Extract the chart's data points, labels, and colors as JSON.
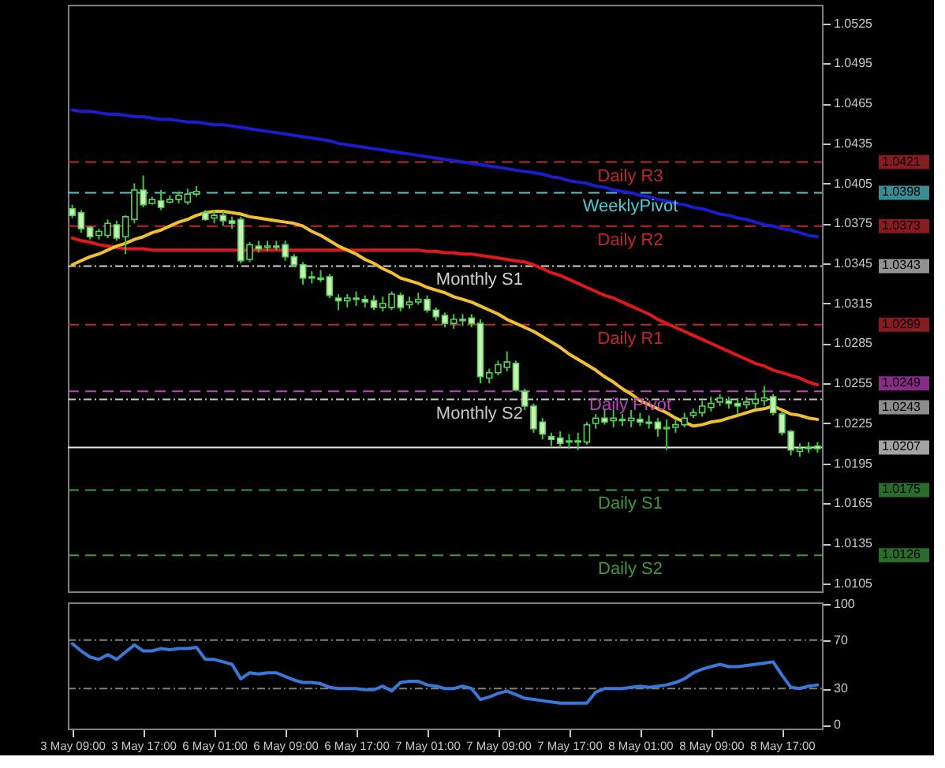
{
  "chart_data": [
    {
      "type": "candlestick",
      "categories": [
        null,
        null,
        null,
        null,
        null,
        null,
        null,
        null,
        null,
        null,
        null,
        null,
        null,
        null,
        null,
        null,
        null,
        null,
        null,
        null,
        null,
        null,
        null,
        null,
        null,
        null,
        null,
        null,
        null,
        null,
        null,
        null,
        null,
        null,
        null,
        null,
        null,
        null,
        null,
        null,
        null,
        null,
        null,
        null,
        null,
        null,
        null,
        null,
        null,
        null,
        null,
        null,
        null,
        null,
        null,
        null,
        null,
        null,
        null,
        null,
        null,
        null,
        null,
        null,
        null,
        null,
        null,
        null,
        null,
        null,
        null,
        null,
        null,
        null,
        null,
        null,
        null,
        null,
        null,
        null,
        null,
        null,
        null,
        null,
        null
      ],
      "ohlc": [
        [
          1.0386,
          1.0389,
          1.0379,
          1.0381
        ],
        [
          1.0383,
          1.0385,
          1.0368,
          1.0371
        ],
        [
          1.0372,
          1.0373,
          1.0363,
          1.0365
        ],
        [
          1.0366,
          1.0371,
          1.0363,
          1.0369
        ],
        [
          1.0366,
          1.0378,
          1.0364,
          1.0375
        ],
        [
          1.0374,
          1.0377,
          1.0362,
          1.0364
        ],
        [
          1.0365,
          1.0381,
          1.0352,
          1.038
        ],
        [
          1.0378,
          1.0405,
          1.0375,
          1.04
        ],
        [
          1.04,
          1.0411,
          1.0387,
          1.0389
        ],
        [
          1.039,
          1.0395,
          1.0389,
          1.0393
        ],
        [
          1.0392,
          1.04,
          1.0385,
          1.0387
        ],
        [
          1.0391,
          1.0396,
          1.039,
          1.0393
        ],
        [
          1.0393,
          1.0399,
          1.039,
          1.0396
        ],
        [
          1.0391,
          1.0401,
          1.0389,
          1.0397
        ],
        [
          1.0397,
          1.0403,
          1.0395,
          1.0399
        ],
        [
          1.0383,
          1.0385,
          1.0377,
          1.0378
        ],
        [
          1.0379,
          1.0385,
          1.0375,
          1.0381
        ],
        [
          1.0381,
          1.0384,
          1.0373,
          1.0377
        ],
        [
          1.0377,
          1.038,
          1.0371,
          1.0375
        ],
        [
          1.0378,
          1.038,
          1.0345,
          1.0347
        ],
        [
          1.0348,
          1.0361,
          1.0346,
          1.0359
        ],
        [
          1.0358,
          1.0362,
          1.0353,
          1.0356
        ],
        [
          1.0357,
          1.0362,
          1.0354,
          1.0358
        ],
        [
          1.0358,
          1.0362,
          1.0355,
          1.0357
        ],
        [
          1.0359,
          1.0362,
          1.0347,
          1.035
        ],
        [
          1.035,
          1.0352,
          1.0342,
          1.0344
        ],
        [
          1.0344,
          1.0346,
          1.0329,
          1.0334
        ],
        [
          1.0335,
          1.0339,
          1.033,
          1.0334
        ],
        [
          1.0334,
          1.034,
          1.0331,
          1.0333
        ],
        [
          1.0335,
          1.0337,
          1.0319,
          1.0321
        ],
        [
          1.0319,
          1.0322,
          1.031,
          1.0317
        ],
        [
          1.0317,
          1.0322,
          1.0312,
          1.0319
        ],
        [
          1.0319,
          1.0324,
          1.0313,
          1.0318
        ],
        [
          1.0318,
          1.0321,
          1.0312,
          1.0316
        ],
        [
          1.0317,
          1.0321,
          1.031,
          1.0312
        ],
        [
          1.0312,
          1.032,
          1.0309,
          1.0315
        ],
        [
          1.0312,
          1.0324,
          1.031,
          1.0322
        ],
        [
          1.0321,
          1.0323,
          1.0309,
          1.0312
        ],
        [
          1.0314,
          1.032,
          1.0311,
          1.0316
        ],
        [
          1.0316,
          1.0323,
          1.0314,
          1.0318
        ],
        [
          1.0318,
          1.0321,
          1.0308,
          1.031
        ],
        [
          1.031,
          1.0312,
          1.0302,
          1.0305
        ],
        [
          1.0306,
          1.0308,
          1.0297,
          1.03
        ],
        [
          1.03,
          1.0307,
          1.0296,
          1.0303
        ],
        [
          1.0303,
          1.0307,
          1.0298,
          1.0302
        ],
        [
          1.0304,
          1.0307,
          1.0297,
          1.03
        ],
        [
          1.03,
          1.0303,
          1.0255,
          1.026
        ],
        [
          1.0259,
          1.0266,
          1.0255,
          1.0263
        ],
        [
          1.0263,
          1.0272,
          1.0261,
          1.0269
        ],
        [
          1.0267,
          1.0279,
          1.0264,
          1.0271
        ],
        [
          1.027,
          1.0272,
          1.0249,
          1.025
        ],
        [
          1.0249,
          1.0251,
          1.0235,
          1.0238
        ],
        [
          1.0238,
          1.024,
          1.0218,
          1.0221
        ],
        [
          1.0226,
          1.0229,
          1.0213,
          1.0217
        ],
        [
          1.0215,
          1.0218,
          1.0208,
          1.0213
        ],
        [
          1.0214,
          1.0219,
          1.0207,
          1.021
        ],
        [
          1.0211,
          1.0217,
          1.0206,
          1.0212
        ],
        [
          1.0212,
          1.0218,
          1.0205,
          1.0211
        ],
        [
          1.0211,
          1.0226,
          1.0209,
          1.0224
        ],
        [
          1.0225,
          1.0232,
          1.0221,
          1.0229
        ],
        [
          1.0229,
          1.0236,
          1.0224,
          1.0226
        ],
        [
          1.0227,
          1.0235,
          1.0222,
          1.0229
        ],
        [
          1.0228,
          1.0232,
          1.0223,
          1.0227
        ],
        [
          1.0227,
          1.0235,
          1.0222,
          1.0229
        ],
        [
          1.0228,
          1.0233,
          1.0223,
          1.0226
        ],
        [
          1.0226,
          1.0231,
          1.0221,
          1.0225
        ],
        [
          1.0226,
          1.0229,
          1.0215,
          1.0221
        ],
        [
          1.0221,
          1.0228,
          1.0205,
          1.0222
        ],
        [
          1.0222,
          1.0228,
          1.0218,
          1.0224
        ],
        [
          1.0224,
          1.0233,
          1.0222,
          1.0229
        ],
        [
          1.0231,
          1.0236,
          1.0229,
          1.0233
        ],
        [
          1.0233,
          1.0242,
          1.023,
          1.0238
        ],
        [
          1.0237,
          1.0245,
          1.0234,
          1.024
        ],
        [
          1.0241,
          1.0247,
          1.0238,
          1.0244
        ],
        [
          1.0242,
          1.0245,
          1.0236,
          1.024
        ],
        [
          1.024,
          1.0244,
          1.0232,
          1.0238
        ],
        [
          1.0239,
          1.0245,
          1.0236,
          1.0241
        ],
        [
          1.024,
          1.0248,
          1.0236,
          1.0243
        ],
        [
          1.0242,
          1.0253,
          1.0238,
          1.0244
        ],
        [
          1.0245,
          1.0247,
          1.0231,
          1.0233
        ],
        [
          1.0232,
          1.0234,
          1.0216,
          1.0218
        ],
        [
          1.0219,
          1.022,
          1.0201,
          1.0205
        ],
        [
          1.0204,
          1.021,
          1.02,
          1.0206
        ],
        [
          1.0206,
          1.0211,
          1.0203,
          1.0207
        ],
        [
          1.0208,
          1.0211,
          1.0203,
          1.0206
        ]
      ],
      "series": [
        {
          "type": "line",
          "color": "#1c1ccf",
          "values": [
            1.046,
            1.0459,
            1.0459,
            1.0458,
            1.0457,
            1.0457,
            1.0456,
            1.0455,
            1.0455,
            1.0454,
            1.0453,
            1.0453,
            1.0452,
            1.0451,
            1.0451,
            1.045,
            1.0449,
            1.0449,
            1.0448,
            1.0447,
            1.0446,
            1.0445,
            1.0444,
            1.0443,
            1.0442,
            1.0441,
            1.044,
            1.0439,
            1.0438,
            1.0437,
            1.0435,
            1.0434,
            1.0433,
            1.0432,
            1.0431,
            1.043,
            1.0429,
            1.0428,
            1.0427,
            1.0426,
            1.0425,
            1.0424,
            1.0423,
            1.0422,
            1.0421,
            1.042,
            1.0419,
            1.0418,
            1.0417,
            1.0416,
            1.0415,
            1.0414,
            1.0413,
            1.0412,
            1.041,
            1.0409,
            1.0407,
            1.0406,
            1.0405,
            1.0403,
            1.0402,
            1.04,
            1.0399,
            1.0398,
            1.0396,
            1.0395,
            1.0393,
            1.0392,
            1.039,
            1.0389,
            1.0387,
            1.0386,
            1.0384,
            1.0382,
            1.0381,
            1.0379,
            1.0378,
            1.0376,
            1.0374,
            1.0373,
            1.0371,
            1.037,
            1.0368,
            1.0366,
            1.0365
          ]
        },
        {
          "type": "line",
          "color": "#e01818",
          "values": [
            1.0364,
            1.0362,
            1.0361,
            1.0359,
            1.0358,
            1.0357,
            1.0356,
            1.0356,
            1.0356,
            1.0355,
            1.0355,
            1.0355,
            1.0355,
            1.0355,
            1.0355,
            1.0355,
            1.0355,
            1.0355,
            1.0355,
            1.0355,
            1.0355,
            1.0355,
            1.0355,
            1.0355,
            1.0355,
            1.0355,
            1.0355,
            1.0355,
            1.0355,
            1.0355,
            1.0355,
            1.0355,
            1.0355,
            1.0355,
            1.0355,
            1.0355,
            1.0355,
            1.0355,
            1.0355,
            1.0355,
            1.0354,
            1.0354,
            1.0353,
            1.0353,
            1.0352,
            1.0352,
            1.0351,
            1.035,
            1.0349,
            1.0348,
            1.0347,
            1.0346,
            1.0344,
            1.0341,
            1.0338,
            1.0336,
            1.0333,
            1.033,
            1.0327,
            1.0324,
            1.0321,
            1.0319,
            1.0316,
            1.0313,
            1.031,
            1.0307,
            1.0303,
            1.03,
            1.0297,
            1.0294,
            1.0291,
            1.0288,
            1.0285,
            1.0282,
            1.0279,
            1.0276,
            1.0273,
            1.027,
            1.0268,
            1.0265,
            1.0263,
            1.0261,
            1.0259,
            1.0256,
            1.0254
          ]
        },
        {
          "type": "line",
          "color": "#f0c030",
          "values": [
            1.0344,
            1.0347,
            1.035,
            1.0352,
            1.0355,
            1.0358,
            1.036,
            1.0363,
            1.0365,
            1.0368,
            1.037,
            1.0373,
            1.0376,
            1.0378,
            1.0381,
            1.0383,
            1.0384,
            1.0384,
            1.0383,
            1.0382,
            1.038,
            1.0379,
            1.0378,
            1.0377,
            1.0376,
            1.0375,
            1.0373,
            1.0369,
            1.0366,
            1.0362,
            1.0358,
            1.0355,
            1.0352,
            1.0348,
            1.0345,
            1.0341,
            1.0338,
            1.0334,
            1.0332,
            1.033,
            1.0327,
            1.0325,
            1.0323,
            1.032,
            1.0318,
            1.0316,
            1.0313,
            1.031,
            1.0307,
            1.0303,
            1.03,
            1.0297,
            1.0294,
            1.029,
            1.0286,
            1.0282,
            1.0277,
            1.0273,
            1.0269,
            1.0265,
            1.026,
            1.0256,
            1.0251,
            1.0247,
            1.0242,
            1.0239,
            1.0236,
            1.0233,
            1.0229,
            1.0226,
            1.0223,
            1.0224,
            1.0226,
            1.0227,
            1.0229,
            1.0231,
            1.0233,
            1.0235,
            1.0236,
            1.0238,
            1.0235,
            1.0232,
            1.0231,
            1.0229,
            1.0228
          ]
        }
      ],
      "ylim": [
        1.0099,
        1.0539
      ],
      "yticks": [
        1.0105,
        1.0135,
        1.0165,
        1.0195,
        1.0225,
        1.0255,
        1.0285,
        1.0315,
        1.0345,
        1.0375,
        1.0405,
        1.0435,
        1.0465,
        1.0495,
        1.0525
      ],
      "ref_lines": [
        {
          "axis": "y",
          "value": 1.0421,
          "label": "Daily R3",
          "color": "#c0282d",
          "line_style": "dashed"
        },
        {
          "axis": "y",
          "value": 1.0398,
          "label": "WeeklyPivot",
          "color": "#50c8d0",
          "line_style": "dashed"
        },
        {
          "axis": "y",
          "value": 1.0373,
          "label": "Daily R2",
          "color": "#c0282d",
          "line_style": "dashed"
        },
        {
          "axis": "y",
          "value": 1.0343,
          "label": "Monthly S1",
          "color": "#d0d0d0",
          "line_style": "dotted"
        },
        {
          "axis": "y",
          "value": 1.0299,
          "label": "Daily R1",
          "color": "#c0282d",
          "line_style": "dashed"
        },
        {
          "axis": "y",
          "value": 1.0249,
          "label": "Daily Pivot",
          "color": "#c040c0",
          "line_style": "dashed"
        },
        {
          "axis": "y",
          "value": 1.0243,
          "label": "Monthly S2",
          "color": "#c8c8c8",
          "line_style": "dotted"
        },
        {
          "axis": "y",
          "value": 1.0207,
          "label": null,
          "color": "#e8e8e8",
          "line_style": "solid"
        },
        {
          "axis": "y",
          "value": 1.0175,
          "label": "Daily S1",
          "color": "#3c9a3c",
          "line_style": "dashed"
        },
        {
          "axis": "y",
          "value": 1.0126,
          "label": "Daily S2",
          "color": "#3c9a3c",
          "line_style": "dashed"
        }
      ],
      "annotations": [
        "1.0421",
        "1.0398",
        "1.0373",
        "1.0343",
        "1.0299",
        "1.0249",
        "1.0243",
        "1.0207",
        "1.0175",
        "1.0126"
      ],
      "grid": false,
      "legend": false,
      "tick_labels": "y"
    },
    {
      "type": "line",
      "categories": [
        "3 May 09:00",
        null,
        null,
        null,
        null,
        null,
        null,
        null,
        "3 May 17:00",
        null,
        null,
        null,
        null,
        null,
        null,
        null,
        "6 May 01:00",
        null,
        null,
        null,
        null,
        null,
        null,
        null,
        "6 May 09:00",
        null,
        null,
        null,
        null,
        null,
        null,
        null,
        "6 May 17:00",
        null,
        null,
        null,
        null,
        null,
        null,
        null,
        "7 May 01:00",
        null,
        null,
        null,
        null,
        null,
        null,
        null,
        "7 May 09:00",
        null,
        null,
        null,
        null,
        null,
        null,
        null,
        "7 May 17:00",
        null,
        null,
        null,
        null,
        null,
        null,
        null,
        "8 May 01:00",
        null,
        null,
        null,
        null,
        null,
        null,
        null,
        "8 May 09:00",
        null,
        null,
        null,
        null,
        null,
        null,
        null,
        "8 May 17:00",
        null,
        null,
        null,
        null
      ],
      "series": [
        {
          "color": "#3a78d8",
          "values": [
            67,
            61,
            56,
            54,
            58,
            54,
            60,
            66,
            61,
            61,
            63,
            62,
            63,
            63,
            64,
            54,
            54,
            52,
            50,
            38,
            43,
            42,
            43,
            43,
            40,
            37,
            35,
            35,
            34,
            31,
            30,
            30,
            30,
            29,
            29,
            32,
            28,
            35,
            36,
            36,
            33,
            32,
            30,
            30,
            32,
            30,
            21,
            23,
            26,
            28,
            25,
            22,
            21,
            20,
            19,
            18,
            18,
            18,
            18,
            27,
            30,
            30,
            30,
            31,
            32,
            31,
            32,
            33,
            35,
            38,
            43,
            46,
            48,
            50,
            48,
            48,
            49,
            50,
            51,
            52,
            41,
            31,
            30,
            32,
            33
          ]
        }
      ],
      "ylim": [
        -3,
        101
      ],
      "yticks": [
        0,
        30,
        70,
        100
      ],
      "ref_lines": [
        {
          "axis": "y",
          "value": 70,
          "label": null,
          "color": "#808080",
          "line_style": "dotted"
        },
        {
          "axis": "y",
          "value": 30,
          "label": null,
          "color": "#808080",
          "line_style": "dotted"
        }
      ],
      "grid": false,
      "legend": false
    }
  ]
}
